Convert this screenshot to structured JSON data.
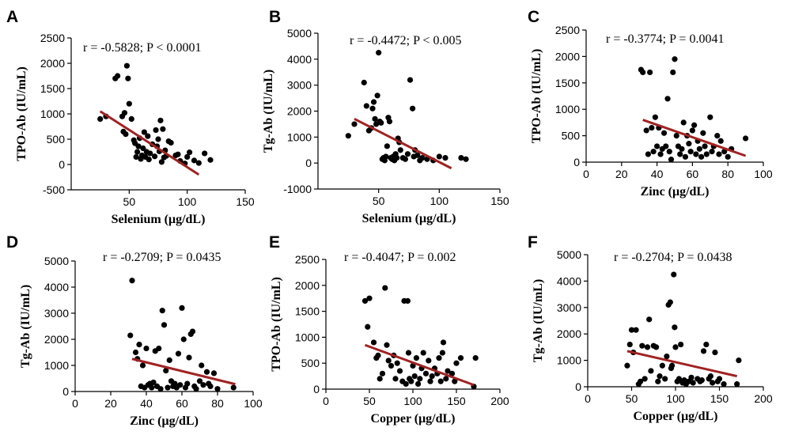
{
  "colors": {
    "point": "#000000",
    "fit_line": "#a02222",
    "axis": "#000000"
  },
  "chart_data": [
    {
      "id": "A",
      "type": "scatter",
      "label": "A",
      "annotation": "r = -0.5828; P < 0.0001",
      "xlabel": "Selenium (μg/dL)",
      "ylabel": "TPO-Ab (IU/mL)",
      "xlim": [
        0,
        150
      ],
      "ylim": [
        -500,
        2500
      ],
      "xticks": [
        50,
        100,
        150
      ],
      "yticks": [
        -500,
        0,
        500,
        1000,
        1500,
        2000,
        2500
      ],
      "x_axis_at_y": -500,
      "fit": [
        [
          25,
          1050
        ],
        [
          110,
          -200
        ]
      ],
      "points": [
        [
          25,
          900
        ],
        [
          30,
          950
        ],
        [
          38,
          1700
        ],
        [
          40,
          1750
        ],
        [
          44,
          950
        ],
        [
          45,
          650
        ],
        [
          46,
          1020
        ],
        [
          47,
          600
        ],
        [
          48,
          1950
        ],
        [
          49,
          1700
        ],
        [
          50,
          1200
        ],
        [
          52,
          900
        ],
        [
          54,
          480
        ],
        [
          55,
          420
        ],
        [
          56,
          150
        ],
        [
          57,
          250
        ],
        [
          58,
          360
        ],
        [
          59,
          520
        ],
        [
          60,
          110
        ],
        [
          61,
          180
        ],
        [
          62,
          320
        ],
        [
          63,
          640
        ],
        [
          64,
          150
        ],
        [
          65,
          250
        ],
        [
          66,
          560
        ],
        [
          67,
          100
        ],
        [
          68,
          220
        ],
        [
          70,
          400
        ],
        [
          72,
          160
        ],
        [
          73,
          680
        ],
        [
          74,
          360
        ],
        [
          75,
          500
        ],
        [
          76,
          260
        ],
        [
          77,
          870
        ],
        [
          78,
          50
        ],
        [
          79,
          700
        ],
        [
          80,
          140
        ],
        [
          81,
          280
        ],
        [
          82,
          170
        ],
        [
          84,
          460
        ],
        [
          86,
          430
        ],
        [
          90,
          180
        ],
        [
          92,
          200
        ],
        [
          94,
          70
        ],
        [
          98,
          20
        ],
        [
          100,
          150
        ],
        [
          102,
          240
        ],
        [
          106,
          80
        ],
        [
          110,
          30
        ],
        [
          115,
          220
        ],
        [
          120,
          90
        ]
      ]
    },
    {
      "id": "B",
      "type": "scatter",
      "label": "B",
      "annotation": "r = -0.4472; P < 0.005",
      "xlabel": "Selenium (μg/dL)",
      "ylabel": "Tg-Ab (IU/mL)",
      "xlim": [
        0,
        150
      ],
      "ylim": [
        -1000,
        5000
      ],
      "xticks": [
        50,
        100,
        150
      ],
      "yticks": [
        -1000,
        0,
        1000,
        2000,
        3000,
        4000,
        5000
      ],
      "x_axis_at_y": -1000,
      "fit": [
        [
          30,
          1700
        ],
        [
          110,
          -200
        ]
      ],
      "points": [
        [
          25,
          1050
        ],
        [
          30,
          1500
        ],
        [
          38,
          3100
        ],
        [
          40,
          2200
        ],
        [
          42,
          1250
        ],
        [
          44,
          1350
        ],
        [
          45,
          2100
        ],
        [
          46,
          2350
        ],
        [
          47,
          1700
        ],
        [
          48,
          1500
        ],
        [
          49,
          2600
        ],
        [
          50,
          4250
        ],
        [
          51,
          1600
        ],
        [
          52,
          1550
        ],
        [
          53,
          150
        ],
        [
          54,
          200
        ],
        [
          55,
          100
        ],
        [
          56,
          250
        ],
        [
          57,
          650
        ],
        [
          58,
          1750
        ],
        [
          59,
          1600
        ],
        [
          60,
          200
        ],
        [
          61,
          150
        ],
        [
          62,
          250
        ],
        [
          63,
          100
        ],
        [
          64,
          350
        ],
        [
          65,
          200
        ],
        [
          66,
          950
        ],
        [
          67,
          800
        ],
        [
          68,
          500
        ],
        [
          70,
          200
        ],
        [
          72,
          150
        ],
        [
          74,
          350
        ],
        [
          76,
          3200
        ],
        [
          78,
          2100
        ],
        [
          79,
          250
        ],
        [
          80,
          500
        ],
        [
          82,
          300
        ],
        [
          84,
          100
        ],
        [
          86,
          200
        ],
        [
          90,
          150
        ],
        [
          95,
          100
        ],
        [
          100,
          250
        ],
        [
          105,
          200
        ],
        [
          118,
          200
        ],
        [
          122,
          150
        ]
      ]
    },
    {
      "id": "C",
      "type": "scatter",
      "label": "C",
      "annotation": "r = -0.3774; P = 0.0041",
      "xlabel": "Zinc (μg/dL)",
      "ylabel": "TPO-Ab (IU/mL)",
      "xlim": [
        0,
        100
      ],
      "ylim": [
        0,
        2500
      ],
      "xticks": [
        0,
        20,
        40,
        60,
        80,
        100
      ],
      "yticks": [
        0,
        500,
        1000,
        1500,
        2000,
        2500
      ],
      "x_axis_at_y": 0,
      "fit": [
        [
          32,
          800
        ],
        [
          90,
          120
        ]
      ],
      "points": [
        [
          31,
          1750
        ],
        [
          32,
          1700
        ],
        [
          34,
          600
        ],
        [
          35,
          150
        ],
        [
          36,
          1700
        ],
        [
          37,
          650
        ],
        [
          38,
          200
        ],
        [
          39,
          850
        ],
        [
          40,
          300
        ],
        [
          41,
          650
        ],
        [
          42,
          150
        ],
        [
          43,
          250
        ],
        [
          44,
          550
        ],
        [
          45,
          300
        ],
        [
          46,
          1200
        ],
        [
          47,
          200
        ],
        [
          48,
          50
        ],
        [
          49,
          1700
        ],
        [
          50,
          1950
        ],
        [
          51,
          500
        ],
        [
          52,
          300
        ],
        [
          53,
          150
        ],
        [
          54,
          250
        ],
        [
          55,
          750
        ],
        [
          56,
          100
        ],
        [
          57,
          500
        ],
        [
          58,
          350
        ],
        [
          59,
          200
        ],
        [
          60,
          600
        ],
        [
          61,
          700
        ],
        [
          62,
          150
        ],
        [
          63,
          400
        ],
        [
          64,
          250
        ],
        [
          65,
          100
        ],
        [
          66,
          550
        ],
        [
          67,
          300
        ],
        [
          68,
          150
        ],
        [
          70,
          850
        ],
        [
          71,
          200
        ],
        [
          72,
          300
        ],
        [
          74,
          500
        ],
        [
          75,
          150
        ],
        [
          76,
          400
        ],
        [
          78,
          200
        ],
        [
          80,
          100
        ],
        [
          82,
          250
        ],
        [
          90,
          450
        ]
      ]
    },
    {
      "id": "D",
      "type": "scatter",
      "label": "D",
      "annotation": "r = -0.2709; P = 0.0435",
      "xlabel": "Zinc (μg/dL)",
      "ylabel": "Tg-Ab (IU/mL)",
      "xlim": [
        0,
        100
      ],
      "ylim": [
        0,
        5000
      ],
      "xticks": [
        0,
        20,
        40,
        60,
        80,
        100
      ],
      "yticks": [
        0,
        1000,
        2000,
        3000,
        4000,
        5000
      ],
      "x_axis_at_y": 0,
      "fit": [
        [
          32,
          1250
        ],
        [
          90,
          280
        ]
      ],
      "points": [
        [
          31,
          2150
        ],
        [
          32,
          4250
        ],
        [
          34,
          1500
        ],
        [
          35,
          1250
        ],
        [
          36,
          1800
        ],
        [
          37,
          200
        ],
        [
          38,
          1000
        ],
        [
          39,
          150
        ],
        [
          40,
          1650
        ],
        [
          41,
          250
        ],
        [
          42,
          300
        ],
        [
          43,
          150
        ],
        [
          44,
          350
        ],
        [
          45,
          1550
        ],
        [
          46,
          200
        ],
        [
          47,
          1650
        ],
        [
          48,
          100
        ],
        [
          49,
          3100
        ],
        [
          50,
          2550
        ],
        [
          51,
          800
        ],
        [
          52,
          150
        ],
        [
          53,
          1200
        ],
        [
          54,
          400
        ],
        [
          55,
          200
        ],
        [
          56,
          300
        ],
        [
          57,
          150
        ],
        [
          58,
          1450
        ],
        [
          59,
          250
        ],
        [
          60,
          3200
        ],
        [
          61,
          2000
        ],
        [
          62,
          150
        ],
        [
          63,
          300
        ],
        [
          64,
          1300
        ],
        [
          65,
          2200
        ],
        [
          66,
          2300
        ],
        [
          67,
          200
        ],
        [
          68,
          100
        ],
        [
          70,
          400
        ],
        [
          71,
          1000
        ],
        [
          72,
          250
        ],
        [
          74,
          750
        ],
        [
          75,
          300
        ],
        [
          76,
          200
        ],
        [
          78,
          700
        ],
        [
          80,
          100
        ],
        [
          89,
          150
        ]
      ]
    },
    {
      "id": "E",
      "type": "scatter",
      "label": "E",
      "annotation": "r = -0.4047; P = 0.002",
      "xlabel": "Copper (μg/dL)",
      "ylabel": "TPO-Ab (IU/mL)",
      "xlim": [
        0,
        200
      ],
      "ylim": [
        0,
        2500
      ],
      "xticks": [
        0,
        50,
        100,
        150,
        200
      ],
      "yticks": [
        0,
        500,
        1000,
        1500,
        2000,
        2500
      ],
      "x_axis_at_y": 0,
      "fit": [
        [
          45,
          850
        ],
        [
          170,
          80
        ]
      ],
      "points": [
        [
          45,
          1700
        ],
        [
          48,
          1200
        ],
        [
          50,
          1750
        ],
        [
          55,
          900
        ],
        [
          58,
          600
        ],
        [
          60,
          650
        ],
        [
          62,
          200
        ],
        [
          65,
          300
        ],
        [
          68,
          1950
        ],
        [
          70,
          850
        ],
        [
          72,
          550
        ],
        [
          75,
          450
        ],
        [
          78,
          650
        ],
        [
          80,
          200
        ],
        [
          82,
          500
        ],
        [
          85,
          350
        ],
        [
          88,
          150
        ],
        [
          90,
          1700
        ],
        [
          92,
          100
        ],
        [
          94,
          1700
        ],
        [
          95,
          700
        ],
        [
          96,
          200
        ],
        [
          98,
          150
        ],
        [
          100,
          450
        ],
        [
          102,
          250
        ],
        [
          104,
          600
        ],
        [
          106,
          100
        ],
        [
          108,
          200
        ],
        [
          110,
          400
        ],
        [
          112,
          700
        ],
        [
          115,
          300
        ],
        [
          118,
          550
        ],
        [
          120,
          150
        ],
        [
          122,
          250
        ],
        [
          125,
          400
        ],
        [
          128,
          300
        ],
        [
          130,
          600
        ],
        [
          132,
          150
        ],
        [
          134,
          700
        ],
        [
          135,
          900
        ],
        [
          138,
          200
        ],
        [
          140,
          350
        ],
        [
          145,
          300
        ],
        [
          148,
          150
        ],
        [
          150,
          500
        ],
        [
          155,
          600
        ],
        [
          170,
          50
        ],
        [
          172,
          600
        ]
      ]
    },
    {
      "id": "F",
      "type": "scatter",
      "label": "F",
      "annotation": "r = -0.2704; P = 0.0438",
      "xlabel": "Copper (μg/dL)",
      "ylabel": "Tg-Ab (IU/mL)",
      "xlim": [
        0,
        200
      ],
      "ylim": [
        0,
        5000
      ],
      "xticks": [
        0,
        50,
        100,
        150,
        200
      ],
      "yticks": [
        0,
        1000,
        2000,
        3000,
        4000,
        5000
      ],
      "x_axis_at_y": 0,
      "fit": [
        [
          45,
          1350
        ],
        [
          170,
          400
        ]
      ],
      "points": [
        [
          45,
          800
        ],
        [
          48,
          1600
        ],
        [
          50,
          2150
        ],
        [
          52,
          1300
        ],
        [
          55,
          2150
        ],
        [
          58,
          100
        ],
        [
          60,
          200
        ],
        [
          62,
          1550
        ],
        [
          65,
          300
        ],
        [
          68,
          1500
        ],
        [
          70,
          2550
        ],
        [
          72,
          600
        ],
        [
          75,
          1550
        ],
        [
          78,
          1500
        ],
        [
          80,
          200
        ],
        [
          82,
          400
        ],
        [
          85,
          800
        ],
        [
          88,
          300
        ],
        [
          90,
          1150
        ],
        [
          92,
          3100
        ],
        [
          94,
          3200
        ],
        [
          95,
          700
        ],
        [
          96,
          800
        ],
        [
          98,
          4250
        ],
        [
          99,
          2250
        ],
        [
          100,
          1500
        ],
        [
          102,
          200
        ],
        [
          104,
          300
        ],
        [
          106,
          1600
        ],
        [
          108,
          150
        ],
        [
          110,
          250
        ],
        [
          112,
          100
        ],
        [
          115,
          200
        ],
        [
          118,
          350
        ],
        [
          120,
          150
        ],
        [
          125,
          300
        ],
        [
          128,
          200
        ],
        [
          130,
          250
        ],
        [
          132,
          1350
        ],
        [
          135,
          1600
        ],
        [
          138,
          300
        ],
        [
          140,
          400
        ],
        [
          142,
          150
        ],
        [
          145,
          1300
        ],
        [
          148,
          200
        ],
        [
          150,
          300
        ],
        [
          155,
          100
        ],
        [
          170,
          100
        ],
        [
          172,
          1000
        ]
      ]
    }
  ]
}
